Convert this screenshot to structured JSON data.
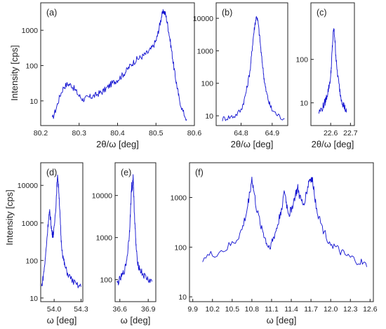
{
  "figure": {
    "ylabel_top": "Intensity [cps]",
    "ylabel_bottom": "Intensity [cps]"
  },
  "chart_data": [
    {
      "type": "line",
      "label": "(a)",
      "xlabel": "2θ/ω  [deg]",
      "ylabel": "Intensity [cps]",
      "xlim": [
        80.2,
        80.6
      ],
      "ylim": [
        2,
        6000
      ],
      "yscale": "log",
      "xticks": [
        "80.2",
        "80.3",
        "80.4",
        "80.5",
        "80.6"
      ],
      "yticks": [
        "10",
        "100",
        "1000"
      ],
      "series": [
        {
          "color": "#1010d0",
          "x": [
            80.23,
            80.24,
            80.25,
            80.26,
            80.27,
            80.28,
            80.29,
            80.3,
            80.31,
            80.32,
            80.33,
            80.34,
            80.35,
            80.36,
            80.37,
            80.38,
            80.39,
            80.4,
            80.41,
            80.42,
            80.43,
            80.44,
            80.45,
            80.46,
            80.47,
            80.48,
            80.49,
            80.5,
            80.505,
            80.51,
            80.515,
            80.52,
            80.525,
            80.53,
            80.535,
            80.54,
            80.545,
            80.55,
            80.555,
            80.56,
            80.57,
            80.58
          ],
          "y": [
            3,
            6,
            14,
            25,
            30,
            28,
            20,
            14,
            11,
            12,
            13,
            14,
            16,
            18,
            22,
            28,
            34,
            40,
            50,
            65,
            90,
            120,
            150,
            170,
            200,
            240,
            320,
            500,
            800,
            1500,
            2600,
            3500,
            2800,
            1500,
            700,
            300,
            120,
            50,
            25,
            12,
            5,
            3
          ]
        }
      ]
    },
    {
      "type": "line",
      "label": "(b)",
      "xlabel": "2θ/ω  [deg]",
      "ylabel": "",
      "xlim": [
        64.72,
        64.95
      ],
      "ylim": [
        5,
        30000
      ],
      "yscale": "log",
      "xticks": [
        "64.8",
        "64.9"
      ],
      "yticks": [
        "10",
        "100",
        "1000",
        "10000"
      ],
      "series": [
        {
          "color": "#1010d0",
          "x": [
            64.74,
            64.76,
            64.78,
            64.8,
            64.81,
            64.82,
            64.83,
            64.835,
            64.84,
            64.845,
            64.85,
            64.855,
            64.86,
            64.865,
            64.87,
            64.875,
            64.88,
            64.89,
            64.9,
            64.92,
            64.94
          ],
          "y": [
            8,
            9,
            10,
            15,
            30,
            80,
            300,
            1000,
            3000,
            7000,
            12000,
            7000,
            2500,
            800,
            300,
            120,
            60,
            25,
            15,
            10,
            8
          ]
        }
      ]
    },
    {
      "type": "line",
      "label": "(c)",
      "xlabel": "2θ/ω  [deg]",
      "ylabel": "",
      "xlim": [
        22.5,
        22.72
      ],
      "ylim": [
        3,
        2000
      ],
      "yscale": "log",
      "xticks": [
        "22.6",
        "22.7"
      ],
      "yticks": [
        "10",
        "100"
      ],
      "series": [
        {
          "color": "#1010d0",
          "x": [
            22.54,
            22.56,
            22.57,
            22.58,
            22.59,
            22.6,
            22.605,
            22.61,
            22.615,
            22.62,
            22.625,
            22.63,
            22.64,
            22.65,
            22.66,
            22.67,
            22.68
          ],
          "y": [
            6,
            8,
            10,
            14,
            22,
            40,
            100,
            250,
            500,
            350,
            150,
            70,
            30,
            15,
            10,
            8,
            6
          ]
        }
      ]
    },
    {
      "type": "line",
      "label": "(d)",
      "xlabel": "ω  [deg]",
      "ylabel": "Intensity [cps]",
      "xlim": [
        53.85,
        54.32
      ],
      "ylim": [
        8,
        40000
      ],
      "yscale": "log",
      "xticks": [
        "54.0",
        "54.3"
      ],
      "yticks": [
        "10",
        "100",
        "1000",
        "10000"
      ],
      "series": [
        {
          "color": "#1010d0",
          "x": [
            53.86,
            53.88,
            53.9,
            53.92,
            53.94,
            53.95,
            53.96,
            53.97,
            53.98,
            53.99,
            54.0,
            54.02,
            54.03,
            54.04,
            54.05,
            54.06,
            54.07,
            54.08,
            54.1,
            54.12,
            54.15,
            54.2,
            54.25,
            54.3
          ],
          "y": [
            20,
            40,
            100,
            400,
            1500,
            1900,
            1300,
            700,
            500,
            500,
            700,
            3000,
            9000,
            18000,
            9000,
            3000,
            900,
            300,
            120,
            70,
            45,
            30,
            22,
            20
          ]
        }
      ]
    },
    {
      "type": "line",
      "label": "(e)",
      "xlabel": "ω  [deg]",
      "ylabel": "",
      "xlim": [
        36.55,
        36.98
      ],
      "ylim": [
        30,
        60000
      ],
      "yscale": "log",
      "xticks": [
        "36.6",
        "36.9"
      ],
      "yticks": [
        "100",
        "1000",
        "10000"
      ],
      "series": [
        {
          "color": "#1010d0",
          "x": [
            36.57,
            36.6,
            36.63,
            36.66,
            36.68,
            36.7,
            36.71,
            36.72,
            36.725,
            36.73,
            36.735,
            36.74,
            36.745,
            36.75,
            36.76,
            36.77,
            36.78,
            36.8,
            36.83,
            36.86,
            36.9,
            36.94
          ],
          "y": [
            80,
            100,
            130,
            200,
            400,
            1200,
            3000,
            10000,
            18000,
            12000,
            20000,
            30000,
            15000,
            6000,
            2000,
            700,
            350,
            200,
            150,
            120,
            100,
            90
          ]
        }
      ]
    },
    {
      "type": "line",
      "label": "(f)",
      "xlabel": "ω  [deg]",
      "ylabel": "",
      "xlim": [
        9.85,
        12.65
      ],
      "ylim": [
        8,
        5000
      ],
      "yscale": "log",
      "xticks": [
        "9.9",
        "10.2",
        "10.5",
        "10.8",
        "11.1",
        "11.4",
        "11.7",
        "12.0",
        "12.3",
        "12.6"
      ],
      "yticks": [
        "10",
        "100",
        "1000"
      ],
      "series": [
        {
          "color": "#1010d0",
          "x": [
            10.05,
            10.2,
            10.4,
            10.55,
            10.65,
            10.72,
            10.77,
            10.8,
            10.83,
            10.88,
            10.95,
            11.0,
            11.05,
            11.1,
            11.15,
            11.2,
            11.25,
            11.3,
            11.33,
            11.37,
            11.42,
            11.47,
            11.5,
            11.53,
            11.58,
            11.63,
            11.67,
            11.7,
            11.73,
            11.77,
            11.82,
            11.9,
            12.0,
            12.1,
            12.2,
            12.3,
            12.45,
            12.55
          ],
          "y": [
            60,
            70,
            90,
            130,
            220,
            500,
            1300,
            2400,
            1300,
            500,
            250,
            150,
            100,
            120,
            180,
            300,
            600,
            1300,
            700,
            450,
            700,
            1200,
            1500,
            1000,
            700,
            1200,
            2200,
            2400,
            2000,
            800,
            400,
            200,
            120,
            90,
            70,
            60,
            50,
            40
          ]
        }
      ]
    }
  ]
}
